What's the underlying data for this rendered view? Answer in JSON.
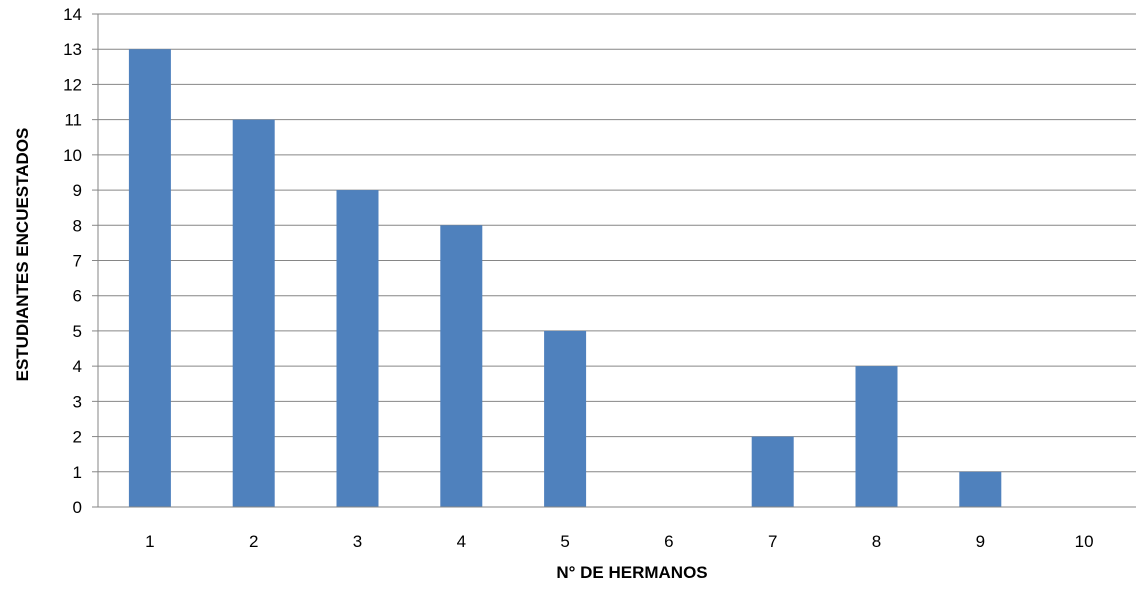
{
  "chart_data": {
    "type": "bar",
    "categories": [
      "1",
      "2",
      "3",
      "4",
      "5",
      "6",
      "7",
      "8",
      "9",
      "10"
    ],
    "values": [
      13,
      11,
      9,
      8,
      5,
      0,
      2,
      4,
      1,
      0
    ],
    "title": "",
    "xlabel": "N° DE HERMANOS",
    "ylabel": "ESTUDIANTES ENCUESTADOS",
    "ylim": [
      0,
      14
    ],
    "yticks": [
      "0",
      "1",
      "2",
      "3",
      "4",
      "5",
      "6",
      "7",
      "8",
      "9",
      "10",
      "11",
      "12",
      "13",
      "14"
    ],
    "grid": true,
    "legend": "none",
    "bar_color": "#4F81BD",
    "grid_color": "#868686"
  }
}
